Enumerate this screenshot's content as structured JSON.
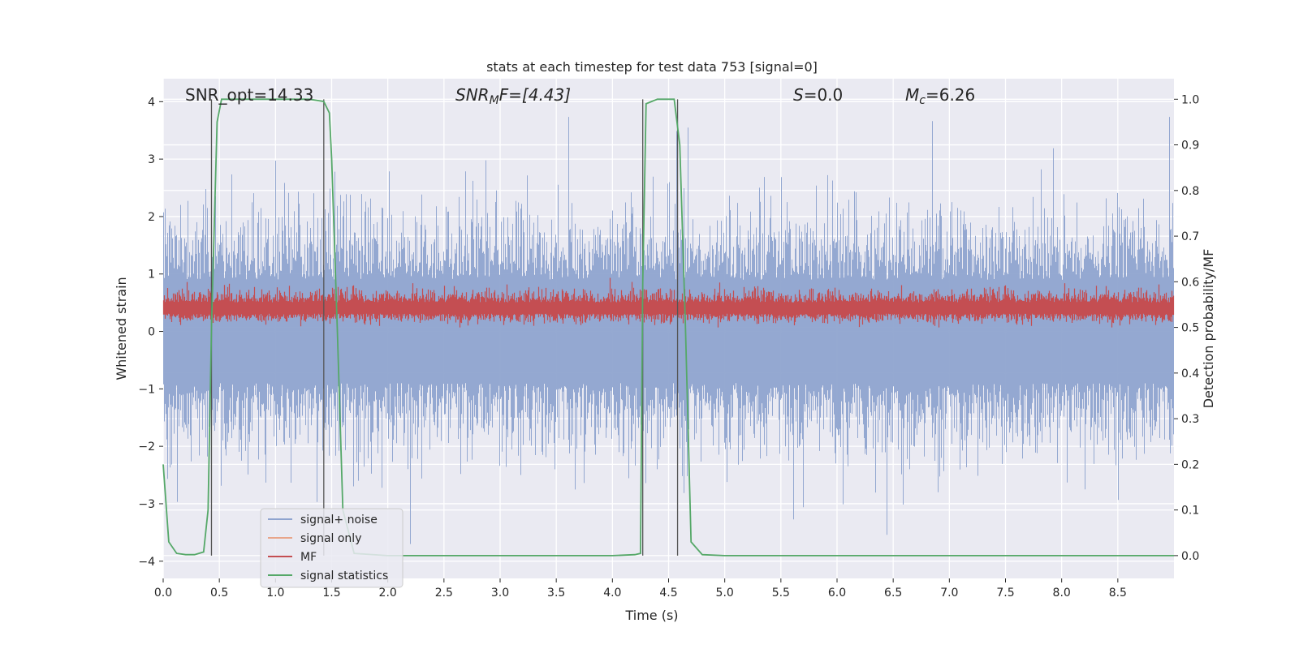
{
  "chart_data": {
    "type": "line",
    "title": "stats at each timestep for test data 753 [signal=0]",
    "xlabel": "Time (s)",
    "ylabel_left": "Whitened strain",
    "ylabel_right": "Detection probability/MF",
    "xlim": [
      0.0,
      9.0
    ],
    "ylim_left": [
      -4.3,
      4.4
    ],
    "ylim_right": [
      -0.05,
      1.045
    ],
    "x_ticks": [
      "0.0",
      "0.5",
      "1.0",
      "1.5",
      "2.0",
      "2.5",
      "3.0",
      "3.5",
      "4.0",
      "4.5",
      "5.0",
      "5.5",
      "6.0",
      "6.5",
      "7.0",
      "7.5",
      "8.0",
      "8.5"
    ],
    "y_ticks_left": [
      "−4",
      "−3",
      "−2",
      "−1",
      "0",
      "1",
      "2",
      "3",
      "4"
    ],
    "y_ticks_right": [
      "0.0",
      "0.1",
      "0.2",
      "0.3",
      "0.4",
      "0.5",
      "0.6",
      "0.7",
      "0.8",
      "0.9",
      "1.0"
    ],
    "annotations": {
      "snr_opt": "SNR_opt=14.33",
      "snr_mf_main": "SNR",
      "snr_mf_sub": "M",
      "snr_mf_rest": "F=[4.43]",
      "s_main": "S",
      "s_rest": "=0.0",
      "mc_main": "M",
      "mc_sub": "c",
      "mc_rest": "=6.26"
    },
    "legend": {
      "position": "lower-left",
      "entries": [
        "signal+ noise",
        "signal only",
        "MF",
        "signal statistics"
      ]
    },
    "vertical_markers_x": [
      0.43,
      1.43,
      4.27,
      4.58
    ],
    "series": [
      {
        "name": "signal statistics",
        "axis": "right",
        "color": "#55a868",
        "x": [
          0.0,
          0.05,
          0.12,
          0.2,
          0.28,
          0.36,
          0.4,
          0.43,
          0.48,
          0.52,
          1.0,
          1.3,
          1.43,
          1.48,
          1.5,
          1.55,
          1.6,
          1.7,
          2.0,
          4.0,
          4.2,
          4.25,
          4.27,
          4.3,
          4.4,
          4.55,
          4.6,
          4.65,
          4.7,
          4.8,
          5.0,
          9.0
        ],
        "values": [
          0.2,
          0.03,
          0.005,
          0.002,
          0.002,
          0.008,
          0.1,
          0.5,
          0.95,
          1.0,
          1.0,
          1.0,
          0.995,
          0.97,
          0.87,
          0.5,
          0.1,
          0.005,
          0.0,
          0.0,
          0.002,
          0.005,
          0.6,
          0.99,
          1.0,
          1.0,
          0.9,
          0.5,
          0.03,
          0.002,
          0.0,
          0.0
        ]
      },
      {
        "name": "signal+ noise",
        "axis": "left",
        "color": "#8fa4cf",
        "generated": "dense noise, amplitude ~±1.5 with spikes to ~±3.9"
      },
      {
        "name": "MF",
        "axis": "right",
        "color": "#c44e52",
        "generated": "dense noise band between ~0.5 and ~0.6"
      },
      {
        "name": "signal only",
        "axis": "left",
        "color": "#dd8452",
        "values_note": "not visible (zero)"
      }
    ],
    "colors": {
      "plot_bg": "#eaeaf2",
      "grid": "#ffffff",
      "marker": "#555555"
    }
  }
}
